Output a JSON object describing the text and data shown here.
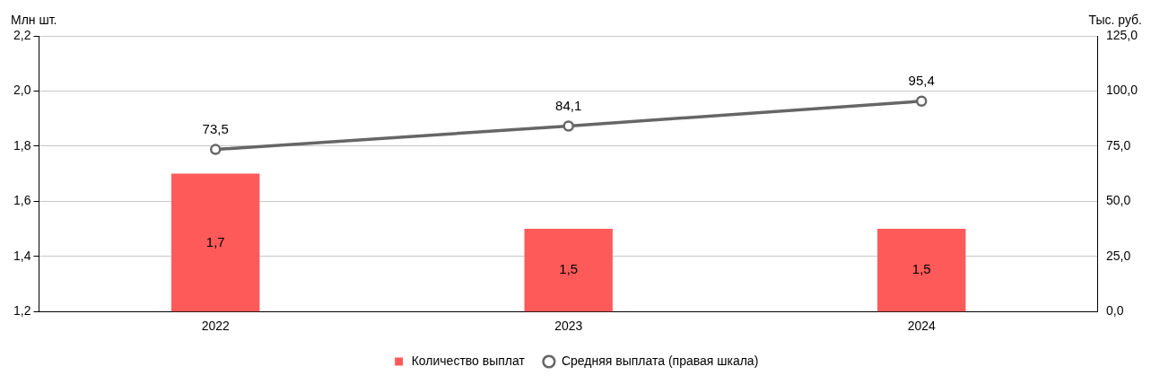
{
  "chart_data": {
    "type": "bar",
    "ylabel": "Млн шт.",
    "y2label": "Тыс. руб.",
    "categories": [
      "2022",
      "2023",
      "2024"
    ],
    "series": [
      {
        "name": "Количество выплат",
        "color": "#ff5a5a",
        "values": [
          1.7,
          1.5,
          1.5
        ],
        "value_labels": [
          "1,7",
          "1,5",
          "1,5"
        ]
      },
      {
        "name": "Средняя выплата (правая шкала)",
        "type": "line",
        "axis": "y2",
        "color": "#666666",
        "values": [
          73.5,
          84.1,
          95.4
        ],
        "value_labels": [
          "73,5",
          "84,1",
          "95,4"
        ]
      }
    ],
    "ylim": [
      1.2,
      2.2
    ],
    "yticks": [
      {
        "value": 1.2,
        "label": "1,2"
      },
      {
        "value": 1.4,
        "label": "1,4"
      },
      {
        "value": 1.6,
        "label": "1,6"
      },
      {
        "value": 1.8,
        "label": "1,8"
      },
      {
        "value": 2.0,
        "label": "2,0"
      },
      {
        "value": 2.2,
        "label": "2,2"
      }
    ],
    "y2lim": [
      0,
      125
    ],
    "y2ticks": [
      {
        "value": 0,
        "label": "0,0"
      },
      {
        "value": 25,
        "label": "25,0"
      },
      {
        "value": 50,
        "label": "50,0"
      },
      {
        "value": 75,
        "label": "75,0"
      },
      {
        "value": 100,
        "label": "100,0"
      },
      {
        "value": 125,
        "label": "125,0"
      }
    ],
    "grid": "y",
    "legend": "bottom",
    "marker": "circle",
    "line_style": "solid"
  }
}
